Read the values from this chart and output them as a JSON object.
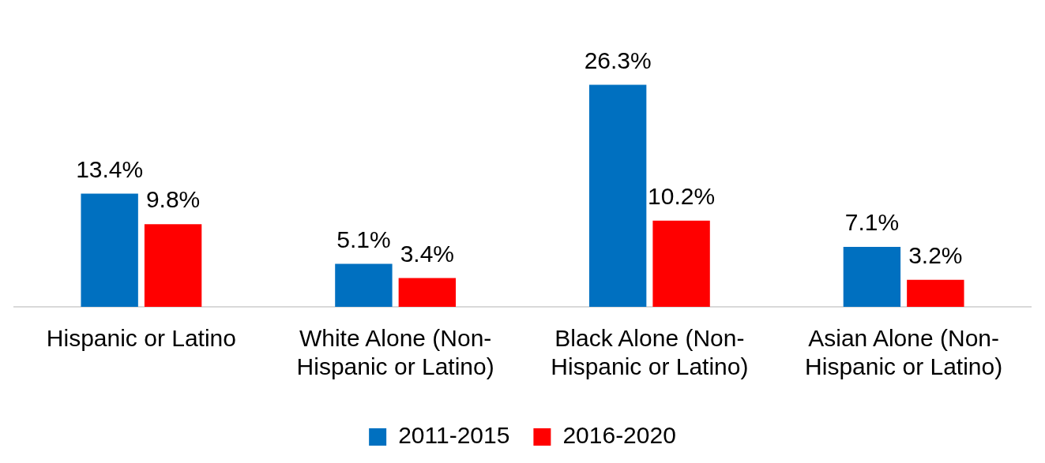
{
  "chart_data": {
    "type": "bar",
    "categories": [
      "Hispanic or Latino",
      "White Alone (Non-Hispanic or Latino)",
      "Black Alone (Non-Hispanic or Latino)",
      "Asian Alone (Non-Hispanic or Latino)"
    ],
    "series": [
      {
        "name": "2011-2015",
        "color": "#0070c0",
        "values": [
          13.4,
          5.1,
          26.3,
          7.1
        ],
        "value_labels": [
          "13.4%",
          "5.1%",
          "26.3%",
          "7.1%"
        ]
      },
      {
        "name": "2016-2020",
        "color": "#ff0000",
        "values": [
          9.8,
          3.4,
          10.2,
          3.2
        ],
        "value_labels": [
          "9.8%",
          "3.4%",
          "10.2%",
          "3.2%"
        ]
      }
    ],
    "data_labels": true,
    "legend": "bottom",
    "grid": false
  }
}
